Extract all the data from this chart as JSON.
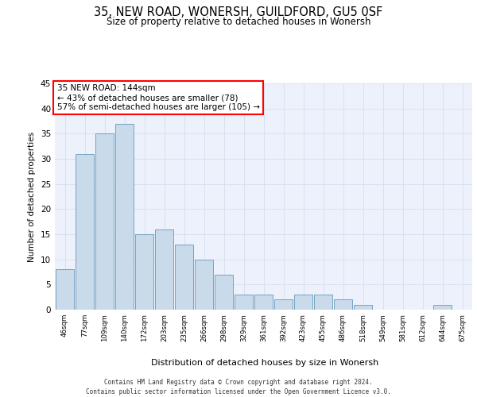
{
  "title": "35, NEW ROAD, WONERSH, GUILDFORD, GU5 0SF",
  "subtitle": "Size of property relative to detached houses in Wonersh",
  "xlabel": "Distribution of detached houses by size in Wonersh",
  "ylabel": "Number of detached properties",
  "categories": [
    "46sqm",
    "77sqm",
    "109sqm",
    "140sqm",
    "172sqm",
    "203sqm",
    "235sqm",
    "266sqm",
    "298sqm",
    "329sqm",
    "361sqm",
    "392sqm",
    "423sqm",
    "455sqm",
    "486sqm",
    "518sqm",
    "549sqm",
    "581sqm",
    "612sqm",
    "644sqm",
    "675sqm"
  ],
  "values": [
    8,
    31,
    35,
    37,
    15,
    16,
    13,
    10,
    7,
    3,
    3,
    2,
    3,
    3,
    2,
    1,
    0,
    0,
    0,
    1,
    0
  ],
  "bar_color": "#c9daea",
  "bar_edge_color": "#6699bb",
  "annotation_text": "35 NEW ROAD: 144sqm\n← 43% of detached houses are smaller (78)\n57% of semi-detached houses are larger (105) →",
  "annotation_box_color": "white",
  "annotation_box_edge_color": "red",
  "ylim": [
    0,
    45
  ],
  "yticks": [
    0,
    5,
    10,
    15,
    20,
    25,
    30,
    35,
    40,
    45
  ],
  "grid_color": "#d8e0f0",
  "background_color": "#edf1fb",
  "footer_line1": "Contains HM Land Registry data © Crown copyright and database right 2024.",
  "footer_line2": "Contains public sector information licensed under the Open Government Licence v3.0."
}
